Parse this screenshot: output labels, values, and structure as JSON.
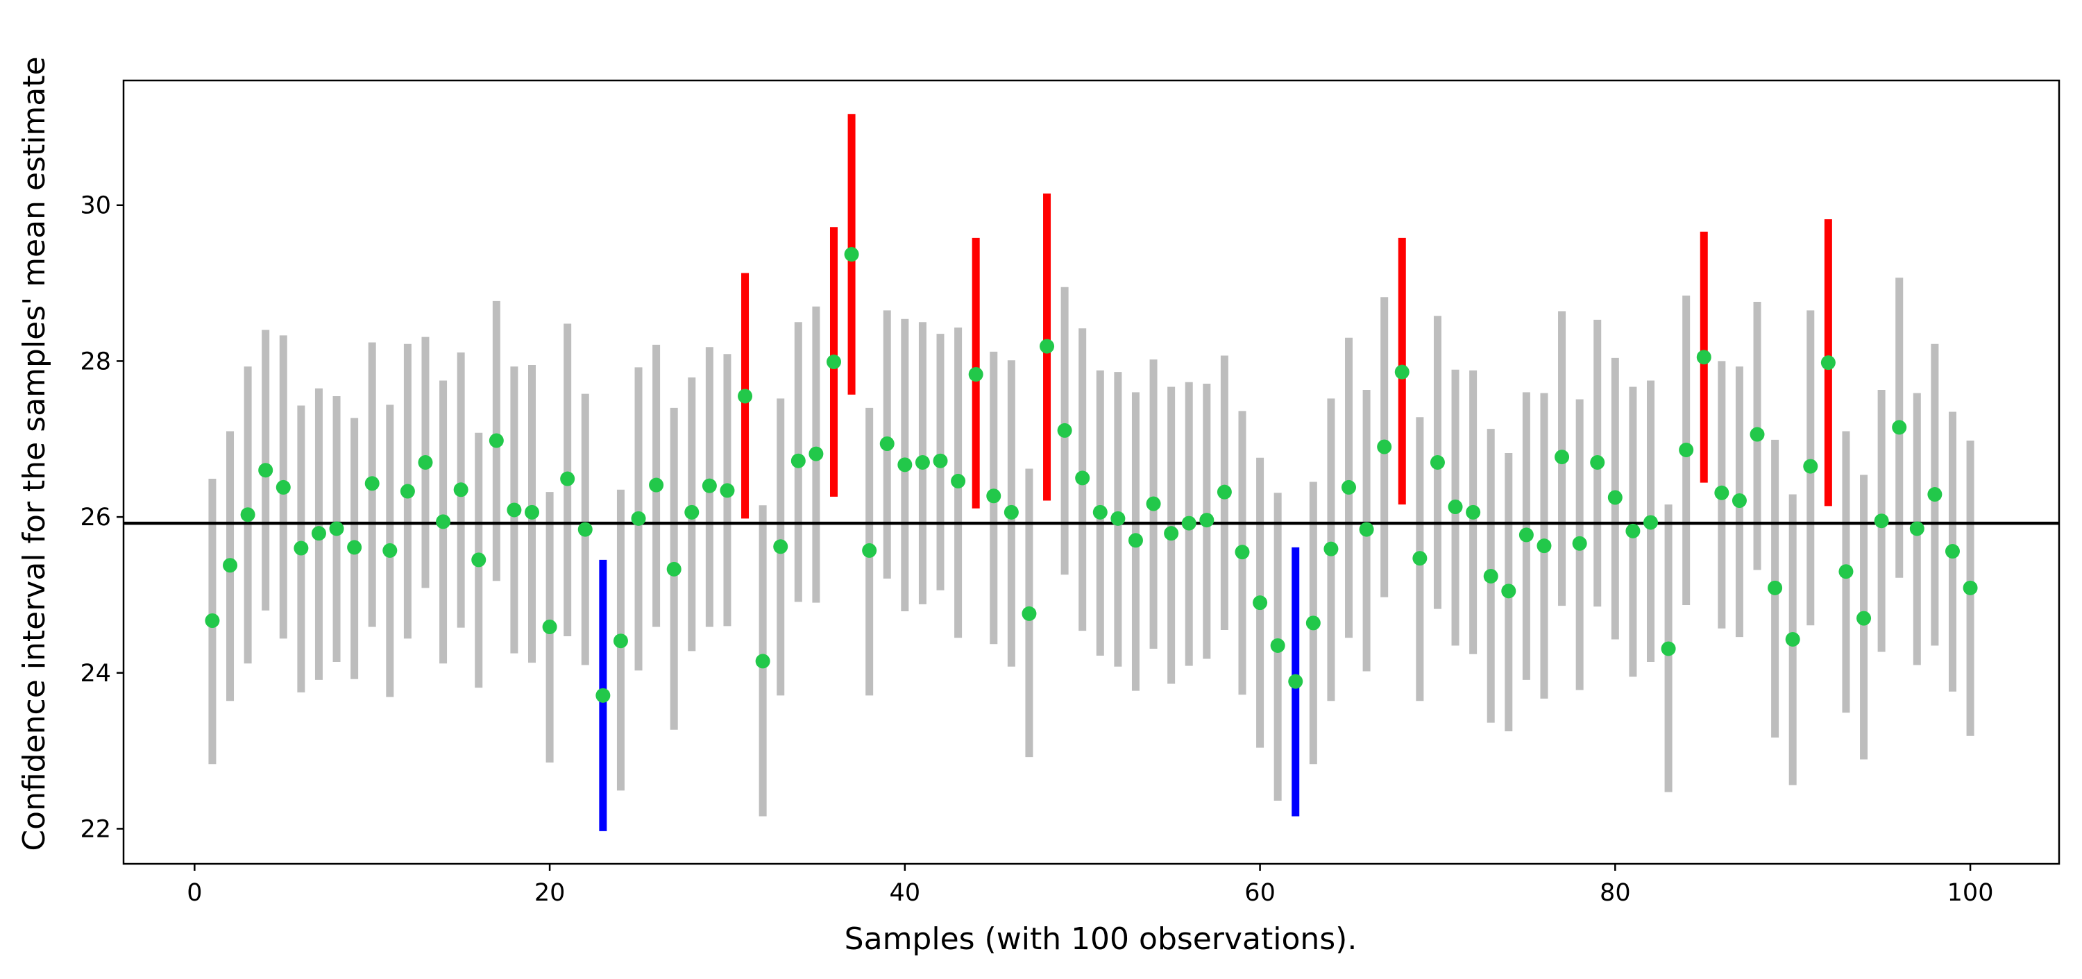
{
  "chart_data": {
    "type": "errorbar",
    "xlabel": "Samples (with 100 observations).",
    "ylabel": "Confidence interval for the samples' mean estimate",
    "xlim": [
      -4,
      105
    ],
    "ylim": [
      21.55,
      31.6
    ],
    "xticks": [
      0,
      20,
      40,
      60,
      80,
      100
    ],
    "yticks": [
      22,
      24,
      26,
      28,
      30
    ],
    "reference_line": 25.92,
    "grid": false,
    "colors": {
      "point": "#22c84a",
      "interval_default": "#bdbdbd",
      "interval_above": "#ff0000",
      "interval_below": "#0000ff",
      "reference": "#000000"
    },
    "x": [
      1,
      2,
      3,
      4,
      5,
      6,
      7,
      8,
      9,
      10,
      11,
      12,
      13,
      14,
      15,
      16,
      17,
      18,
      19,
      20,
      21,
      22,
      23,
      24,
      25,
      26,
      27,
      28,
      29,
      30,
      31,
      32,
      33,
      34,
      35,
      36,
      37,
      38,
      39,
      40,
      41,
      42,
      43,
      44,
      45,
      46,
      47,
      48,
      49,
      50,
      51,
      52,
      53,
      54,
      55,
      56,
      57,
      58,
      59,
      60,
      61,
      62,
      63,
      64,
      65,
      66,
      67,
      68,
      69,
      70,
      71,
      72,
      73,
      74,
      75,
      76,
      77,
      78,
      79,
      80,
      81,
      82,
      83,
      84,
      85,
      86,
      87,
      88,
      89,
      90,
      91,
      92,
      93,
      94,
      95,
      96,
      97,
      98,
      99,
      100
    ],
    "means": [
      24.67,
      25.38,
      26.03,
      26.6,
      26.38,
      25.6,
      25.79,
      25.85,
      25.61,
      26.43,
      25.57,
      26.33,
      26.7,
      25.94,
      26.35,
      25.45,
      26.98,
      26.09,
      26.06,
      24.59,
      26.49,
      25.84,
      23.71,
      24.41,
      25.98,
      26.41,
      25.33,
      26.06,
      26.4,
      26.34,
      27.55,
      24.15,
      25.62,
      26.72,
      26.81,
      27.99,
      29.37,
      25.57,
      26.94,
      26.67,
      26.7,
      26.72,
      26.46,
      27.83,
      26.27,
      26.06,
      24.76,
      28.19,
      27.11,
      26.5,
      26.06,
      25.98,
      25.7,
      26.17,
      25.79,
      25.92,
      25.96,
      26.32,
      25.55,
      24.9,
      24.35,
      23.89,
      24.64,
      25.59,
      26.38,
      25.84,
      26.9,
      27.86,
      25.47,
      26.7,
      26.13,
      26.06,
      25.24,
      25.05,
      25.77,
      25.63,
      26.77,
      25.66,
      26.7,
      26.25,
      25.82,
      25.93,
      24.31,
      26.86,
      28.05,
      26.31,
      26.21,
      27.06,
      25.09,
      24.43,
      26.65,
      27.98,
      25.3,
      24.7,
      25.95,
      27.15,
      25.85,
      26.29,
      25.56,
      25.09
    ],
    "lower": [
      22.83,
      23.64,
      24.12,
      24.8,
      24.44,
      23.75,
      23.91,
      24.14,
      23.92,
      24.59,
      23.69,
      24.44,
      25.09,
      24.12,
      24.58,
      23.81,
      25.18,
      24.25,
      24.13,
      22.85,
      24.47,
      24.1,
      21.97,
      22.49,
      24.03,
      24.59,
      23.27,
      24.28,
      24.59,
      24.6,
      25.98,
      22.16,
      23.71,
      24.91,
      24.9,
      26.26,
      27.57,
      23.71,
      25.21,
      24.79,
      24.88,
      25.06,
      24.45,
      26.11,
      24.37,
      24.08,
      22.92,
      26.21,
      25.26,
      24.54,
      24.22,
      24.08,
      23.77,
      24.31,
      23.86,
      24.09,
      24.18,
      24.55,
      23.72,
      23.04,
      22.36,
      22.16,
      22.83,
      23.64,
      24.45,
      24.02,
      24.97,
      26.16,
      23.64,
      24.82,
      24.35,
      24.24,
      23.36,
      23.25,
      23.91,
      23.67,
      24.86,
      23.78,
      24.85,
      24.43,
      23.95,
      24.14,
      22.47,
      24.87,
      26.44,
      24.57,
      24.46,
      25.32,
      23.17,
      22.56,
      24.61,
      26.14,
      23.49,
      22.89,
      24.27,
      25.22,
      24.1,
      24.35,
      23.76,
      23.19
    ],
    "upper": [
      26.49,
      27.1,
      27.93,
      28.4,
      28.33,
      27.43,
      27.65,
      27.55,
      27.27,
      28.24,
      27.44,
      28.22,
      28.31,
      27.75,
      28.11,
      27.08,
      28.77,
      27.93,
      27.95,
      26.32,
      28.48,
      27.58,
      25.45,
      26.35,
      27.92,
      28.21,
      27.4,
      27.79,
      28.18,
      28.09,
      29.13,
      26.15,
      27.52,
      28.5,
      28.7,
      29.72,
      31.17,
      27.4,
      28.65,
      28.54,
      28.5,
      28.35,
      28.43,
      29.58,
      28.12,
      28.01,
      26.62,
      30.15,
      28.95,
      28.42,
      27.88,
      27.86,
      27.6,
      28.02,
      27.67,
      27.73,
      27.71,
      28.07,
      27.36,
      26.76,
      26.31,
      25.61,
      26.45,
      27.52,
      28.3,
      27.63,
      28.82,
      29.58,
      27.28,
      28.58,
      27.89,
      27.88,
      27.13,
      26.82,
      27.6,
      27.59,
      28.64,
      27.51,
      28.53,
      28.04,
      27.67,
      27.75,
      26.16,
      28.84,
      29.66,
      28.0,
      27.93,
      28.76,
      26.99,
      26.29,
      28.65,
      29.82,
      27.1,
      26.54,
      27.63,
      29.07,
      27.59,
      28.22,
      27.35,
      26.98
    ]
  }
}
